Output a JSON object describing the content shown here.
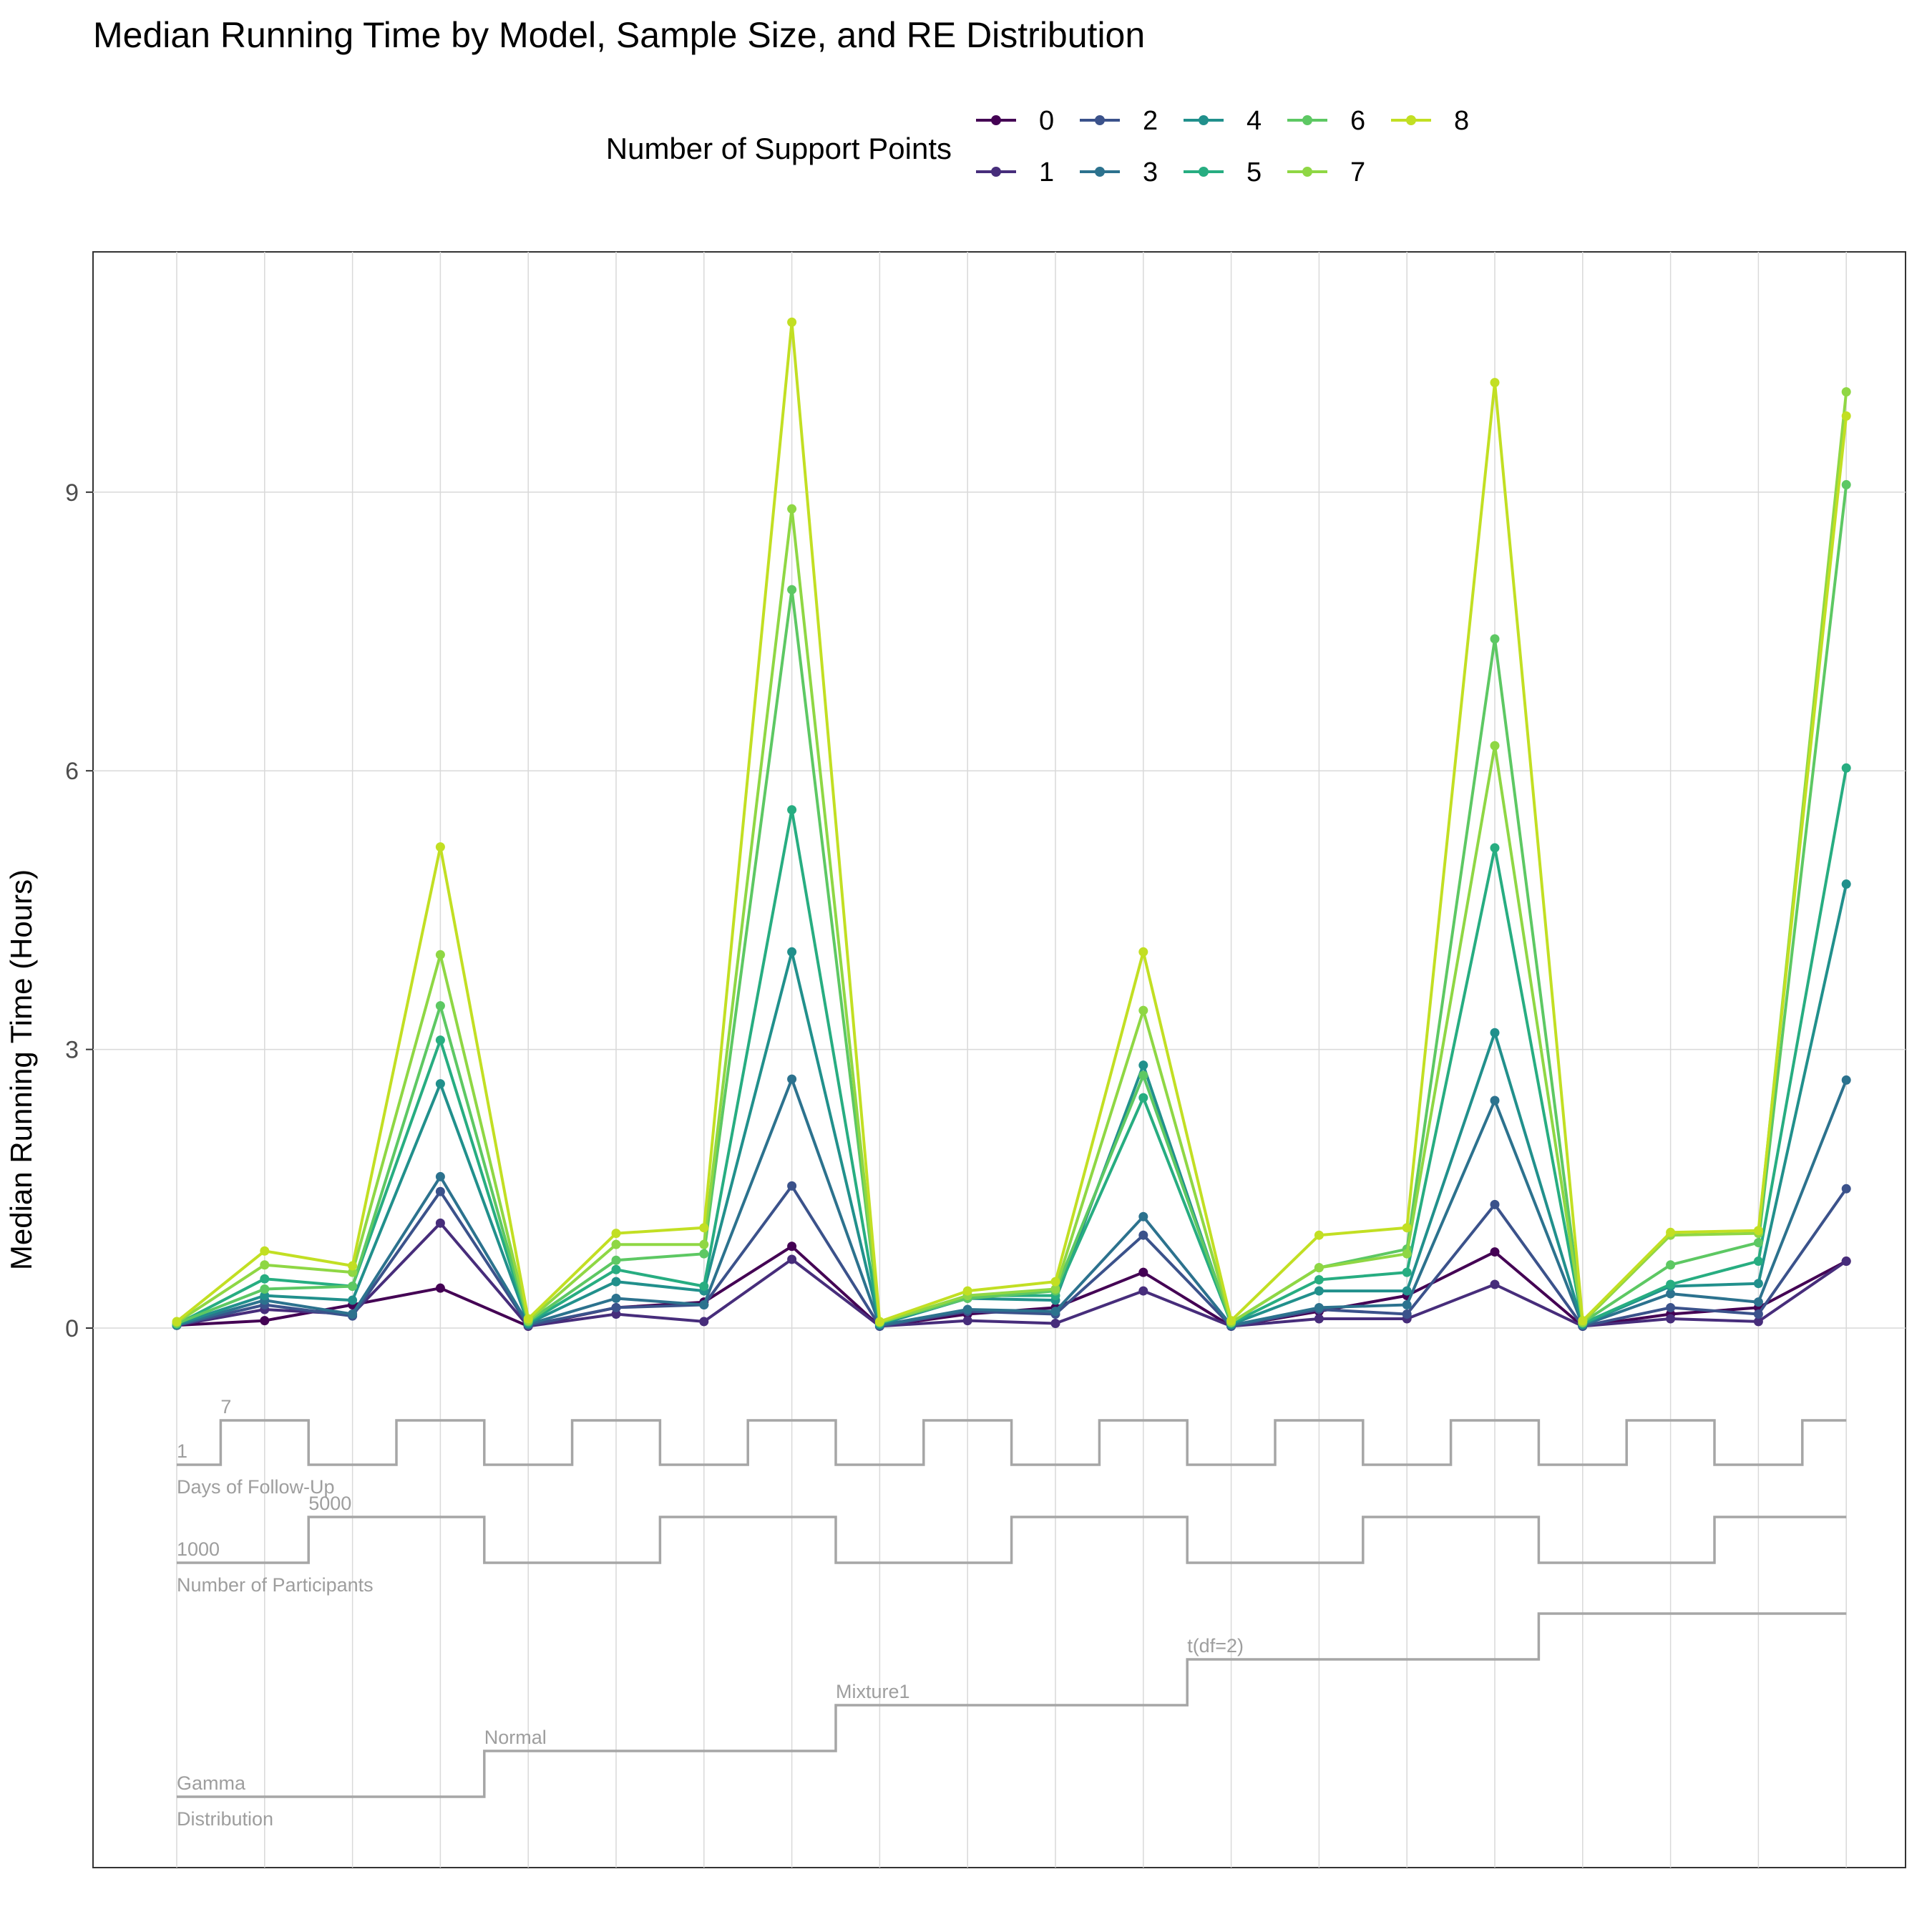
{
  "chart_data": {
    "type": "line",
    "title": "Median Running Time by Model, Sample Size, and RE Distribution",
    "ylabel": "Median Running Time (Hours)",
    "xlabel": "",
    "ylim": [
      0,
      11.5
    ],
    "yticks": [
      0,
      3,
      6,
      9
    ],
    "grid": true,
    "legend": {
      "title": "Number of Support Points",
      "position": "top"
    },
    "colors": [
      "#440154",
      "#472D7B",
      "#3B528B",
      "#2C728E",
      "#21908C",
      "#27AD81",
      "#5DC863",
      "#8FD744",
      "#C2DF23"
    ],
    "x": [
      1,
      2,
      3,
      4,
      5,
      6,
      7,
      8,
      9,
      10,
      11,
      12,
      13,
      14,
      15,
      16,
      17,
      18,
      19,
      20
    ],
    "series": [
      {
        "name": "0",
        "values": [
          0.03,
          0.08,
          0.25,
          0.43,
          0.02,
          0.22,
          0.28,
          0.88,
          0.02,
          0.15,
          0.22,
          0.6,
          0.02,
          0.18,
          0.35,
          0.82,
          0.02,
          0.15,
          0.22,
          0.72
        ]
      },
      {
        "name": "1",
        "values": [
          0.03,
          0.2,
          0.15,
          1.13,
          0.02,
          0.15,
          0.07,
          0.74,
          0.02,
          0.08,
          0.05,
          0.4,
          0.02,
          0.1,
          0.1,
          0.47,
          0.02,
          0.1,
          0.07,
          0.72
        ]
      },
      {
        "name": "2",
        "values": [
          0.03,
          0.25,
          0.13,
          1.47,
          0.03,
          0.22,
          0.25,
          1.53,
          0.02,
          0.18,
          0.15,
          1.0,
          0.02,
          0.2,
          0.15,
          1.33,
          0.02,
          0.22,
          0.15,
          1.5
        ]
      },
      {
        "name": "3",
        "values": [
          0.03,
          0.3,
          0.15,
          1.63,
          0.04,
          0.32,
          0.25,
          2.68,
          0.03,
          0.2,
          0.18,
          1.2,
          0.03,
          0.22,
          0.25,
          2.45,
          0.03,
          0.37,
          0.28,
          2.67
        ]
      },
      {
        "name": "4",
        "values": [
          0.04,
          0.35,
          0.3,
          2.63,
          0.05,
          0.5,
          0.4,
          4.05,
          0.04,
          0.32,
          0.3,
          2.83,
          0.04,
          0.4,
          0.4,
          3.18,
          0.04,
          0.45,
          0.48,
          4.78
        ]
      },
      {
        "name": "5",
        "values": [
          0.04,
          0.53,
          0.45,
          3.1,
          0.06,
          0.63,
          0.45,
          5.58,
          0.05,
          0.35,
          0.35,
          2.48,
          0.05,
          0.52,
          0.6,
          5.17,
          0.05,
          0.47,
          0.72,
          6.03
        ]
      },
      {
        "name": "6",
        "values": [
          0.05,
          0.42,
          0.45,
          3.47,
          0.07,
          0.73,
          0.8,
          7.95,
          0.06,
          0.32,
          0.4,
          2.72,
          0.06,
          0.65,
          0.85,
          7.42,
          0.06,
          0.68,
          0.92,
          9.08
        ]
      },
      {
        "name": "7",
        "values": [
          0.06,
          0.68,
          0.6,
          4.02,
          0.08,
          0.9,
          0.9,
          8.82,
          0.06,
          0.35,
          0.42,
          3.42,
          0.06,
          0.65,
          0.8,
          6.27,
          0.06,
          1.0,
          1.02,
          10.08
        ]
      },
      {
        "name": "8",
        "values": [
          0.07,
          0.83,
          0.67,
          5.18,
          0.1,
          1.02,
          1.08,
          10.83,
          0.07,
          0.4,
          0.5,
          4.05,
          0.08,
          1.0,
          1.08,
          10.18,
          0.08,
          1.03,
          1.05,
          9.82
        ]
      }
    ],
    "factors": [
      {
        "label": "Days of Follow-Up",
        "levels": [
          "1",
          "7"
        ],
        "pattern": [
          0,
          1,
          0,
          1,
          0,
          1,
          0,
          1,
          0,
          1,
          0,
          1,
          0,
          1,
          0,
          1,
          0,
          1,
          0,
          1
        ]
      },
      {
        "label": "Number of Participants",
        "levels": [
          "1000",
          "5000"
        ],
        "pattern": [
          0,
          0,
          1,
          1,
          0,
          0,
          1,
          1,
          0,
          0,
          1,
          1,
          0,
          0,
          1,
          1,
          0,
          0,
          1,
          1
        ]
      },
      {
        "label": "Distribution",
        "levels": [
          "Gamma",
          "Normal",
          "Mixture1",
          "t(df=2)",
          ""
        ],
        "pattern": [
          0,
          0,
          0,
          0,
          1,
          1,
          1,
          1,
          2,
          2,
          2,
          2,
          3,
          3,
          3,
          3,
          4,
          4,
          4,
          4
        ]
      }
    ]
  }
}
